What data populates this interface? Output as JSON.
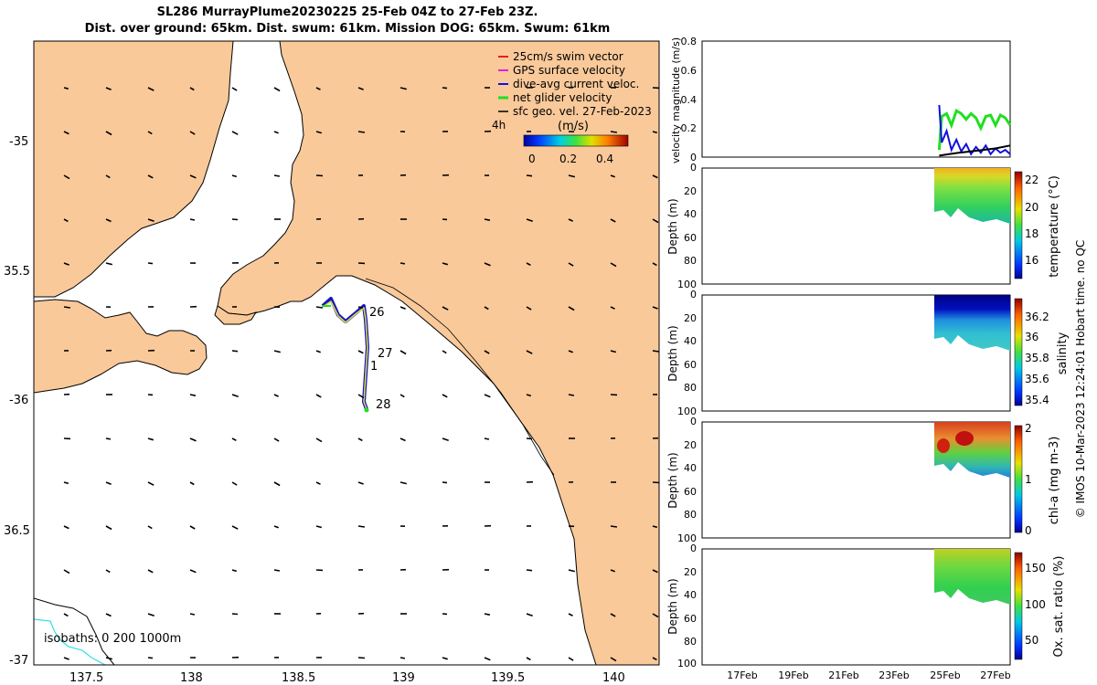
{
  "header": {
    "line1": "SL286 MurrayPlume20230225 25-Feb 04Z to 27-Feb 23Z.",
    "line2": "Dist. over ground: 65km. Dist. swum: 61km. Mission DOG: 65km. Swum: 61km"
  },
  "colors": {
    "land": "#f9c99a",
    "sea": "#ffffff",
    "glider_track_outer": "#1018c8",
    "glider_track_inner": "#e8e030",
    "swim_vector": "#e02020",
    "gps_velocity": "#e020e0",
    "dive_avg": "#1010e0",
    "net_velocity": "#20e020",
    "sfc_geo": "#000000",
    "isobath_200": "#000000",
    "isobath_1000": "#30e0e0"
  },
  "map": {
    "legend": [
      {
        "label": "25cm/s swim vector",
        "color": "#e02020"
      },
      {
        "label": "GPS surface velocity",
        "color": "#e020e0"
      },
      {
        "label": "dive-avg current veloc.",
        "color": "#1010e0"
      },
      {
        "label": "net glider velocity",
        "color": "#20e020"
      },
      {
        "label": "sfc geo. vel. 27-Feb-2023",
        "color": "#000000"
      }
    ],
    "legend_extra": "4h",
    "colorbar": {
      "label": "(m/s)",
      "ticks": [
        "0",
        "0.2",
        "0.4"
      ]
    },
    "lon_ticks": [
      "137.5",
      "138",
      "138.5",
      "139",
      "139.5",
      "140"
    ],
    "lat_ticks": [
      "-35",
      "35.5",
      "-36",
      "36.5",
      "-37"
    ],
    "day_labels": [
      "26",
      "27",
      "1",
      "28"
    ],
    "isobath_label": "isobaths: 0   200  1000m"
  },
  "panels": [
    {
      "ylabel": "velocity magnitude (m/s)",
      "yticks": [
        "0",
        "0.2",
        "0.4",
        "0.6",
        "0.8"
      ]
    },
    {
      "ylabel": "Depth (m)",
      "yticks": [
        "0",
        "20",
        "40",
        "60",
        "80",
        "100"
      ],
      "cbar_label": "temperature (°C)",
      "cbar_ticks": [
        "22",
        "20",
        "18",
        "16"
      ]
    },
    {
      "ylabel": "Depth (m)",
      "yticks": [
        "0",
        "20",
        "40",
        "60",
        "80",
        "100"
      ],
      "cbar_label": "salinity",
      "cbar_ticks": [
        "36.2",
        "36",
        "35.8",
        "35.6",
        "35.4"
      ]
    },
    {
      "ylabel": "Depth (m)",
      "yticks": [
        "0",
        "20",
        "40",
        "60",
        "80",
        "100"
      ],
      "cbar_label": "chl-a (mg m-3)",
      "cbar_ticks": [
        "2",
        "1",
        "0"
      ]
    },
    {
      "ylabel": "Depth (m)",
      "yticks": [
        "0",
        "20",
        "40",
        "60",
        "80",
        "100"
      ],
      "cbar_label": "Ox. sat. ratio (%)",
      "cbar_ticks": [
        "150",
        "100",
        "50"
      ]
    }
  ],
  "time_axis": {
    "ticks": [
      "17Feb",
      "19Feb",
      "21Feb",
      "23Feb",
      "25Feb",
      "27Feb"
    ]
  },
  "footer": "© IMOS 10-Mar-2023 12:24:01 Hobart time. no QC",
  "chart_data": [
    {
      "type": "line",
      "panel": "velocity",
      "ylabel": "velocity magnitude (m/s)",
      "ylim": [
        0,
        0.8
      ],
      "x_unit": "day of Feb 2023",
      "xlim": [
        15.5,
        28.1
      ],
      "series": [
        {
          "color": "#20e020",
          "x": [
            25.2,
            25.3,
            25.5,
            25.7,
            25.9,
            26.1,
            26.3,
            26.5,
            26.7,
            26.9,
            27.1,
            27.3,
            27.5,
            27.7,
            27.9,
            28.1
          ],
          "y": [
            0.05,
            0.28,
            0.3,
            0.22,
            0.32,
            0.3,
            0.26,
            0.3,
            0.27,
            0.2,
            0.28,
            0.29,
            0.22,
            0.29,
            0.27,
            0.22
          ]
        },
        {
          "color": "#1010e0",
          "x": [
            25.2,
            25.3,
            25.5,
            25.7,
            25.9,
            26.1,
            26.3,
            26.5,
            26.7,
            26.9,
            27.1,
            27.3,
            27.5,
            27.7,
            27.9,
            28.1
          ],
          "y": [
            0.36,
            0.1,
            0.18,
            0.05,
            0.12,
            0.04,
            0.09,
            0.02,
            0.07,
            0.03,
            0.08,
            0.02,
            0.06,
            0.03,
            0.05,
            0.02
          ]
        },
        {
          "color": "#000000",
          "x": [
            25.2,
            25.6,
            26.0,
            26.5,
            27.0,
            27.5,
            28.1
          ],
          "y": [
            0.01,
            0.02,
            0.03,
            0.04,
            0.05,
            0.06,
            0.08
          ]
        }
      ]
    }
  ]
}
